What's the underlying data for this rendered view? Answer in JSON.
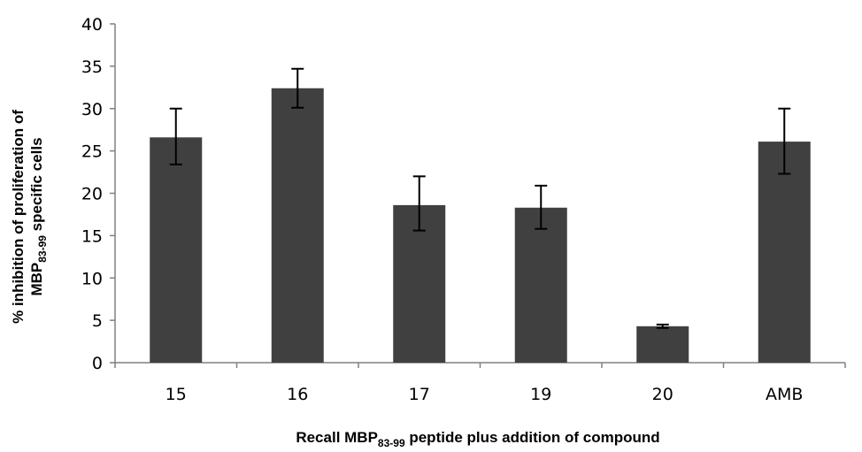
{
  "chart_data": {
    "type": "bar",
    "categories": [
      "15",
      "16",
      "17",
      "19",
      "20",
      "AMB"
    ],
    "values": [
      26.6,
      32.4,
      18.6,
      18.3,
      4.3,
      26.1
    ],
    "error_low": [
      23.4,
      30.1,
      15.6,
      15.8,
      4.1,
      22.3
    ],
    "error_high": [
      30.0,
      34.7,
      22.0,
      20.9,
      4.5,
      30.0
    ],
    "ylim": [
      0,
      40
    ],
    "yticks": [
      "0",
      "5",
      "10",
      "15",
      "20",
      "25",
      "30",
      "35",
      "40"
    ],
    "grid": false,
    "legend": "none",
    "bar_color": "#404040",
    "ylabel": {
      "line1": "% inhibition of proliferation of",
      "line2_prefix": "MBP",
      "line2_sub": "83-99",
      "line2_suffix": " specific cells"
    },
    "xlabel": {
      "prefix": "Recall MBP",
      "sub": "83-99",
      "suffix": " peptide plus addition of compound"
    }
  }
}
